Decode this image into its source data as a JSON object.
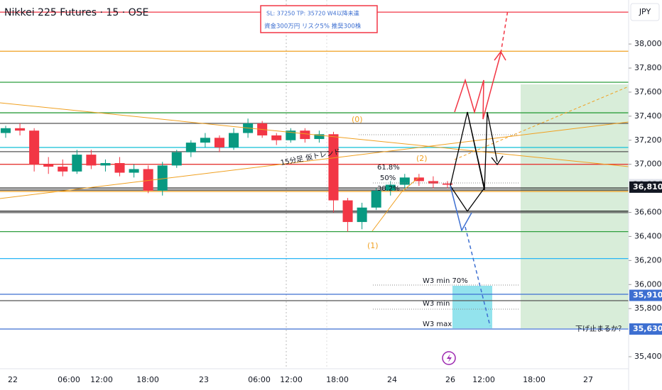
{
  "chart_data": {
    "type": "candlestick",
    "title": "Nikkei 225 Futures · 15 · OSE",
    "currency": "JPY",
    "ylim": [
      35300,
      38366
    ],
    "yticks": [
      {
        "value": 38000,
        "label": "38,000"
      },
      {
        "value": 37800,
        "label": "37,800"
      },
      {
        "value": 37600,
        "label": "37,600"
      },
      {
        "value": 37400,
        "label": "37,400"
      },
      {
        "value": 37200,
        "label": "37,200"
      },
      {
        "value": 37000,
        "label": "37,000"
      },
      {
        "value": 36600,
        "label": "36,600"
      },
      {
        "value": 36400,
        "label": "36,400"
      },
      {
        "value": 36200,
        "label": "36,200"
      },
      {
        "value": 36000,
        "label": "36,000"
      },
      {
        "value": 35800,
        "label": "35,800"
      },
      {
        "value": 35400,
        "label": "35,400"
      }
    ],
    "x_labels": [
      "22",
      "06:00",
      "12:00",
      "18:00",
      "23",
      "06:00",
      "12:00",
      "18:00",
      "24",
      "26",
      "12:00",
      "18:00",
      "27"
    ],
    "up_color": "#089981",
    "down_color": "#f23645",
    "ohlc": [
      [
        37260,
        37320,
        37220,
        37300
      ],
      [
        37300,
        37340,
        37240,
        37280
      ],
      [
        37280,
        37300,
        36940,
        37000
      ],
      [
        37000,
        37060,
        36920,
        36980
      ],
      [
        36980,
        37040,
        36900,
        36940
      ],
      [
        36940,
        37120,
        36920,
        37080
      ],
      [
        37080,
        37120,
        36960,
        36990
      ],
      [
        36990,
        37040,
        36940,
        37010
      ],
      [
        37010,
        37060,
        36900,
        36930
      ],
      [
        36930,
        37000,
        36890,
        36960
      ],
      [
        36960,
        36990,
        36760,
        36780
      ],
      [
        36780,
        37020,
        36740,
        36990
      ],
      [
        36990,
        37120,
        36970,
        37100
      ],
      [
        37100,
        37200,
        37060,
        37180
      ],
      [
        37180,
        37260,
        37140,
        37220
      ],
      [
        37220,
        37240,
        37100,
        37140
      ],
      [
        37140,
        37300,
        37120,
        37260
      ],
      [
        37260,
        37380,
        37220,
        37340
      ],
      [
        37340,
        37360,
        37220,
        37240
      ],
      [
        37240,
        37260,
        37160,
        37200
      ],
      [
        37200,
        37300,
        37180,
        37280
      ],
      [
        37280,
        37300,
        37180,
        37210
      ],
      [
        37210,
        37280,
        37180,
        37250
      ],
      [
        37250,
        37270,
        36600,
        36700
      ],
      [
        36700,
        36720,
        36440,
        36520
      ],
      [
        36520,
        36680,
        36460,
        36640
      ],
      [
        36640,
        36800,
        36620,
        36780
      ],
      [
        36780,
        36860,
        36740,
        36830
      ],
      [
        36830,
        36920,
        36800,
        36890
      ],
      [
        36890,
        36920,
        36820,
        36860
      ],
      [
        36860,
        36900,
        36800,
        36840
      ],
      [
        36840,
        36860,
        36800,
        36830
      ]
    ],
    "levels": [
      {
        "value": 38265,
        "color": "#f23645"
      },
      {
        "value": 37940,
        "color": "#f0a020"
      },
      {
        "value": 37682,
        "color": "#2e9e3e"
      },
      {
        "value": 37428,
        "color": "#2e9e3e"
      },
      {
        "value": 37340,
        "color": "#555555"
      },
      {
        "value": 37140,
        "color": "#26c6da"
      },
      {
        "value": 37105,
        "color": "#555555"
      },
      {
        "value": 37000,
        "color": "#e53935"
      },
      {
        "value": 36803,
        "color": "#222222"
      },
      {
        "value": 36786,
        "color": "#222222"
      },
      {
        "value": 36774,
        "color": "#f0a020"
      },
      {
        "value": 36610,
        "color": "#222222"
      },
      {
        "value": 36598,
        "color": "#555555"
      },
      {
        "value": 36440,
        "color": "#2e9e3e"
      },
      {
        "value": 36216,
        "color": "#29b6f6"
      },
      {
        "value": 35919,
        "color": "#3d6fd1"
      },
      {
        "value": 35866,
        "color": "#555555"
      },
      {
        "value": 35630,
        "color": "#3d6fd1"
      }
    ],
    "price_tags": [
      {
        "value": 36830,
        "label": "36,830",
        "color": "#e0e3eb",
        "text_color": "#131722"
      },
      {
        "value": 36810,
        "label": "36,810",
        "color": "#131722",
        "text_color": "#ffffff"
      },
      {
        "value": 35910,
        "label": "35,910",
        "color": "#3d6fd1",
        "text_color": "#ffffff"
      },
      {
        "value": 35630,
        "label": "35,630",
        "color": "#3d6fd1",
        "text_color": "#ffffff"
      }
    ],
    "annotations": {
      "box_line1": "SL: 37250    TP: 35720   W4以降未達",
      "box_line2": "資金300万円  リスク5%    推奨300株",
      "wave0": "(0)",
      "wave1": "(1)",
      "wave2": "(2)",
      "fib618": "61.8%",
      "fib50": "50%",
      "fib382": "38.2%",
      "trend": "15分足 仮トレンド",
      "w3min70": "W3 min 70%",
      "w3min": "W3 min",
      "w3max": "W3 max",
      "question": "下げ止まるか？"
    }
  }
}
